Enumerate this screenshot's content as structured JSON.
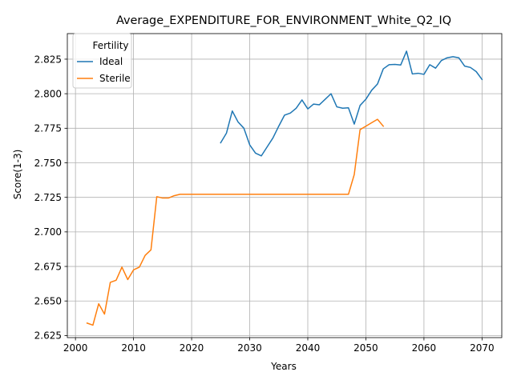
{
  "chart_data": {
    "type": "line",
    "title": "Average_EXPENDITURE_FOR_ENVIRONMENT_White_Q2_IQ",
    "xlabel": "Years",
    "ylabel": "Score(1-3)",
    "xlim": [
      1998.6,
      2073.4
    ],
    "ylim": [
      2.6235,
      2.8435
    ],
    "xticks": [
      2000,
      2010,
      2020,
      2030,
      2040,
      2050,
      2060,
      2070
    ],
    "yticks": [
      2.625,
      2.65,
      2.675,
      2.7,
      2.725,
      2.75,
      2.775,
      2.8,
      2.825
    ],
    "xtick_labels": [
      "2000",
      "2010",
      "2020",
      "2030",
      "2040",
      "2050",
      "2060",
      "2070"
    ],
    "ytick_labels": [
      "2.625",
      "2.650",
      "2.675",
      "2.700",
      "2.725",
      "2.750",
      "2.775",
      "2.800",
      "2.825"
    ],
    "grid": true,
    "legend": {
      "title": "Fertility",
      "placement": "upper-left"
    },
    "series": [
      {
        "name": "Ideal",
        "color": "#1f77b4",
        "x": [
          2025,
          2026,
          2027,
          2028,
          2029,
          2030,
          2031,
          2032,
          2033,
          2034,
          2035,
          2036,
          2037,
          2038,
          2039,
          2040,
          2041,
          2042,
          2043,
          2044,
          2045,
          2046,
          2047,
          2048,
          2049,
          2050,
          2051,
          2052,
          2053,
          2054,
          2055,
          2056,
          2057,
          2058,
          2059,
          2060,
          2061,
          2062,
          2063,
          2064,
          2065,
          2066,
          2067,
          2068,
          2069,
          2070
        ],
        "y": [
          2.7645,
          2.7715,
          2.7875,
          2.7795,
          2.775,
          2.763,
          2.757,
          2.755,
          2.7615,
          2.768,
          2.7765,
          2.7845,
          2.786,
          2.7895,
          2.7955,
          2.789,
          2.7925,
          2.792,
          2.796,
          2.8,
          2.7905,
          2.7895,
          2.7898,
          2.778,
          2.7915,
          2.796,
          2.8025,
          2.807,
          2.818,
          2.821,
          2.8212,
          2.8208,
          2.8308,
          2.8143,
          2.8148,
          2.814,
          2.821,
          2.8185,
          2.824,
          2.826,
          2.8268,
          2.826,
          2.82,
          2.819,
          2.816,
          2.8103
        ]
      },
      {
        "name": "Sterile",
        "color": "#ff7f0e",
        "x": [
          2002,
          2003,
          2004,
          2005,
          2006,
          2007,
          2008,
          2009,
          2010,
          2011,
          2012,
          2013,
          2014,
          2015,
          2016,
          2017,
          2018,
          2019,
          2020,
          2021,
          2022,
          2023,
          2024,
          2025,
          2026,
          2027,
          2028,
          2029,
          2030,
          2031,
          2032,
          2033,
          2034,
          2035,
          2036,
          2037,
          2038,
          2039,
          2040,
          2041,
          2042,
          2043,
          2044,
          2045,
          2046,
          2047,
          2048,
          2049,
          2050,
          2051,
          2052,
          2053
        ],
        "y": [
          2.634,
          2.6325,
          2.648,
          2.6405,
          2.6635,
          2.665,
          2.6745,
          2.6655,
          2.6725,
          2.6745,
          2.683,
          2.687,
          2.7255,
          2.7245,
          2.7245,
          2.7262,
          2.7272,
          2.7272,
          2.7272,
          2.7272,
          2.7272,
          2.7272,
          2.7272,
          2.7272,
          2.7272,
          2.7272,
          2.7272,
          2.7272,
          2.7272,
          2.7272,
          2.7272,
          2.7272,
          2.7272,
          2.7272,
          2.7272,
          2.7272,
          2.7272,
          2.7272,
          2.7272,
          2.7272,
          2.7272,
          2.7272,
          2.7272,
          2.7272,
          2.7272,
          2.7272,
          2.7415,
          2.774,
          2.7765,
          2.779,
          2.7815,
          2.7765
        ]
      }
    ]
  }
}
